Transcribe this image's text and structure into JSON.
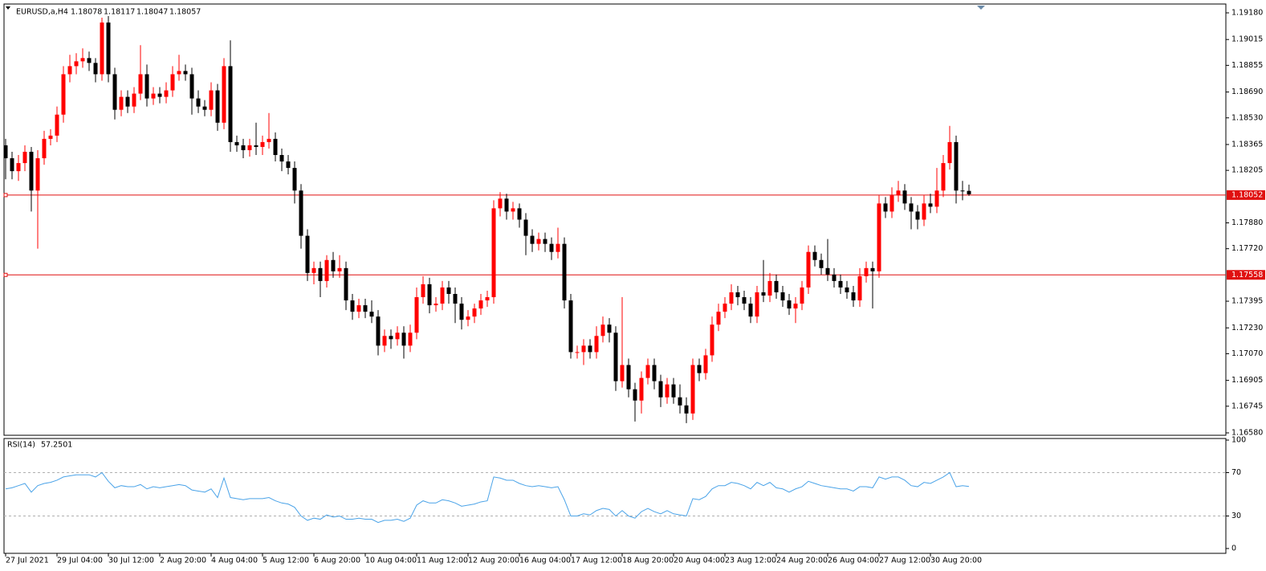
{
  "chart_data": [
    {
      "type": "candlestick",
      "title": "EURUSD,a,H4",
      "up_color": "#ff0000",
      "down_color": "#000000",
      "categories": [
        "27 Jul 2021",
        null,
        null,
        null,
        null,
        null,
        null,
        null,
        "29 Jul 04:00",
        null,
        null,
        null,
        null,
        null,
        null,
        null,
        "30 Jul 12:00",
        null,
        null,
        null,
        null,
        null,
        null,
        null,
        "2 Aug 20:00",
        null,
        null,
        null,
        null,
        null,
        null,
        null,
        "4 Aug 04:00",
        null,
        null,
        null,
        null,
        null,
        null,
        null,
        "5 Aug 12:00",
        null,
        null,
        null,
        null,
        null,
        null,
        null,
        "6 Aug 20:00",
        null,
        null,
        null,
        null,
        null,
        null,
        null,
        "10 Aug 04:00",
        null,
        null,
        null,
        null,
        null,
        null,
        null,
        "11 Aug 12:00",
        null,
        null,
        null,
        null,
        null,
        null,
        null,
        "12 Aug 20:00",
        null,
        null,
        null,
        null,
        null,
        null,
        null,
        "16 Aug 04:00",
        null,
        null,
        null,
        null,
        null,
        null,
        null,
        "17 Aug 12:00",
        null,
        null,
        null,
        null,
        null,
        null,
        null,
        "18 Aug 20:00",
        null,
        null,
        null,
        null,
        null,
        null,
        null,
        "20 Aug 04:00",
        null,
        null,
        null,
        null,
        null,
        null,
        null,
        "23 Aug 12:00",
        null,
        null,
        null,
        null,
        null,
        null,
        null,
        "24 Aug 20:00",
        null,
        null,
        null,
        null,
        null,
        null,
        null,
        "26 Aug 04:00",
        null,
        null,
        null,
        null,
        null,
        null,
        null,
        "27 Aug 12:00",
        null,
        null,
        null,
        null,
        null,
        null,
        null,
        "30 Aug 20:00",
        null,
        null,
        null,
        null,
        null,
        null
      ],
      "ohlc": [
        [
          1.1836,
          1.184,
          1.1815,
          1.1828
        ],
        [
          1.1828,
          1.1832,
          1.1815,
          1.182
        ],
        [
          1.182,
          1.183,
          1.1814,
          1.1825
        ],
        [
          1.1825,
          1.1836,
          1.182,
          1.1832
        ],
        [
          1.1832,
          1.1835,
          1.1795,
          1.1808
        ],
        [
          1.1808,
          1.1833,
          1.1772,
          1.1828
        ],
        [
          1.1828,
          1.1845,
          1.1824,
          1.184
        ],
        [
          1.184,
          1.1846,
          1.1836,
          1.1842
        ],
        [
          1.1842,
          1.186,
          1.1838,
          1.1855
        ],
        [
          1.1855,
          1.1885,
          1.185,
          1.188
        ],
        [
          1.188,
          1.1892,
          1.1875,
          1.1885
        ],
        [
          1.1885,
          1.1893,
          1.188,
          1.1888
        ],
        [
          1.1888,
          1.1896,
          1.1884,
          1.189
        ],
        [
          1.189,
          1.1894,
          1.1882,
          1.1887
        ],
        [
          1.1887,
          1.189,
          1.1875,
          1.188
        ],
        [
          1.188,
          1.1915,
          1.1876,
          1.1912
        ],
        [
          1.1912,
          1.1916,
          1.1875,
          1.188
        ],
        [
          1.188,
          1.1884,
          1.1852,
          1.1858
        ],
        [
          1.1858,
          1.187,
          1.1854,
          1.1866
        ],
        [
          1.1866,
          1.187,
          1.1856,
          1.186
        ],
        [
          1.186,
          1.1872,
          1.1856,
          1.1868
        ],
        [
          1.1868,
          1.1898,
          1.1864,
          1.188
        ],
        [
          1.188,
          1.1886,
          1.186,
          1.1865
        ],
        [
          1.1865,
          1.1872,
          1.1861,
          1.1868
        ],
        [
          1.1868,
          1.1872,
          1.1862,
          1.1866
        ],
        [
          1.1866,
          1.1875,
          1.1862,
          1.187
        ],
        [
          1.187,
          1.1885,
          1.1866,
          1.188
        ],
        [
          1.188,
          1.1892,
          1.1876,
          1.1882
        ],
        [
          1.1882,
          1.1886,
          1.1876,
          1.188
        ],
        [
          1.188,
          1.1884,
          1.1855,
          1.1865
        ],
        [
          1.1865,
          1.187,
          1.1856,
          1.186
        ],
        [
          1.186,
          1.1864,
          1.1854,
          1.1858
        ],
        [
          1.1858,
          1.1875,
          1.1854,
          1.187
        ],
        [
          1.187,
          1.1874,
          1.1845,
          1.185
        ],
        [
          1.185,
          1.189,
          1.1846,
          1.1885
        ],
        [
          1.1885,
          1.1901,
          1.1832,
          1.1838
        ],
        [
          1.1838,
          1.1842,
          1.1832,
          1.1836
        ],
        [
          1.1836,
          1.184,
          1.1828,
          1.1833
        ],
        [
          1.1833,
          1.184,
          1.1829,
          1.1836
        ],
        [
          1.1836,
          1.185,
          1.183,
          1.1835
        ],
        [
          1.1835,
          1.1842,
          1.183,
          1.1838
        ],
        [
          1.1838,
          1.1856,
          1.1834,
          1.184
        ],
        [
          1.184,
          1.1844,
          1.1826,
          1.183
        ],
        [
          1.183,
          1.1834,
          1.182,
          1.1826
        ],
        [
          1.1826,
          1.183,
          1.1818,
          1.1822
        ],
        [
          1.1822,
          1.1826,
          1.18,
          1.1808
        ],
        [
          1.1808,
          1.1812,
          1.1772,
          1.178
        ],
        [
          1.178,
          1.1784,
          1.1752,
          1.1757
        ],
        [
          1.1757,
          1.1764,
          1.175,
          1.176
        ],
        [
          1.176,
          1.1764,
          1.1742,
          1.1752
        ],
        [
          1.1752,
          1.1768,
          1.1748,
          1.1765
        ],
        [
          1.1765,
          1.177,
          1.1754,
          1.1758
        ],
        [
          1.1758,
          1.1768,
          1.1754,
          1.176
        ],
        [
          1.176,
          1.1764,
          1.1734,
          1.174
        ],
        [
          1.174,
          1.1744,
          1.1728,
          1.1733
        ],
        [
          1.1733,
          1.1741,
          1.1729,
          1.1737
        ],
        [
          1.1737,
          1.1741,
          1.1729,
          1.1733
        ],
        [
          1.1733,
          1.174,
          1.1726,
          1.173
        ],
        [
          1.173,
          1.1734,
          1.1706,
          1.1712
        ],
        [
          1.1712,
          1.1722,
          1.1708,
          1.1718
        ],
        [
          1.1718,
          1.1722,
          1.171,
          1.1716
        ],
        [
          1.1716,
          1.1724,
          1.1712,
          1.172
        ],
        [
          1.172,
          1.1724,
          1.1704,
          1.1712
        ],
        [
          1.1712,
          1.1725,
          1.1708,
          1.172
        ],
        [
          1.172,
          1.1748,
          1.1716,
          1.1742
        ],
        [
          1.1742,
          1.1755,
          1.1738,
          1.175
        ],
        [
          1.175,
          1.1754,
          1.1732,
          1.1737
        ],
        [
          1.1737,
          1.1742,
          1.1733,
          1.1738
        ],
        [
          1.1738,
          1.1752,
          1.1734,
          1.1748
        ],
        [
          1.1748,
          1.1752,
          1.1738,
          1.1744
        ],
        [
          1.1744,
          1.1748,
          1.1726,
          1.1738
        ],
        [
          1.1738,
          1.1742,
          1.1722,
          1.1728
        ],
        [
          1.1728,
          1.1734,
          1.1724,
          1.173
        ],
        [
          1.173,
          1.1738,
          1.1726,
          1.1735
        ],
        [
          1.1735,
          1.1744,
          1.1731,
          1.174
        ],
        [
          1.174,
          1.1746,
          1.1736,
          1.1742
        ],
        [
          1.1742,
          1.1802,
          1.1738,
          1.1797
        ],
        [
          1.1797,
          1.1807,
          1.1792,
          1.1803
        ],
        [
          1.1803,
          1.1806,
          1.179,
          1.1795
        ],
        [
          1.1795,
          1.1801,
          1.179,
          1.1797
        ],
        [
          1.1797,
          1.18,
          1.1785,
          1.179
        ],
        [
          1.179,
          1.1794,
          1.1768,
          1.178
        ],
        [
          1.178,
          1.1784,
          1.177,
          1.1775
        ],
        [
          1.1775,
          1.1782,
          1.1771,
          1.1778
        ],
        [
          1.1778,
          1.1782,
          1.177,
          1.1775
        ],
        [
          1.1775,
          1.1779,
          1.1765,
          1.177
        ],
        [
          1.177,
          1.1785,
          1.1766,
          1.1775
        ],
        [
          1.1775,
          1.1779,
          1.1735,
          1.174
        ],
        [
          1.174,
          1.1744,
          1.1704,
          1.1708
        ],
        [
          1.1708,
          1.1712,
          1.1704,
          1.1708
        ],
        [
          1.1708,
          1.1716,
          1.17,
          1.1712
        ],
        [
          1.1712,
          1.1716,
          1.1704,
          1.1708
        ],
        [
          1.1708,
          1.1724,
          1.1704,
          1.1718
        ],
        [
          1.1718,
          1.173,
          1.1714,
          1.1725
        ],
        [
          1.1725,
          1.1729,
          1.1714,
          1.172
        ],
        [
          1.172,
          1.1724,
          1.1684,
          1.169
        ],
        [
          1.169,
          1.1742,
          1.1686,
          1.17
        ],
        [
          1.17,
          1.1704,
          1.168,
          1.1685
        ],
        [
          1.1685,
          1.1689,
          1.1665,
          1.1678
        ],
        [
          1.1678,
          1.1696,
          1.167,
          1.1692
        ],
        [
          1.1692,
          1.1704,
          1.1688,
          1.17
        ],
        [
          1.17,
          1.1704,
          1.1685,
          1.169
        ],
        [
          1.169,
          1.1694,
          1.1674,
          1.168
        ],
        [
          1.168,
          1.1692,
          1.1676,
          1.1688
        ],
        [
          1.1688,
          1.1692,
          1.1676,
          1.168
        ],
        [
          1.168,
          1.1688,
          1.167,
          1.1675
        ],
        [
          1.1675,
          1.168,
          1.1664,
          1.167
        ],
        [
          1.167,
          1.1704,
          1.1666,
          1.17
        ],
        [
          1.17,
          1.1704,
          1.169,
          1.1695
        ],
        [
          1.1695,
          1.171,
          1.1691,
          1.1706
        ],
        [
          1.1706,
          1.173,
          1.1702,
          1.1725
        ],
        [
          1.1725,
          1.1738,
          1.1721,
          1.1733
        ],
        [
          1.1733,
          1.1742,
          1.1729,
          1.1738
        ],
        [
          1.1738,
          1.175,
          1.1734,
          1.1745
        ],
        [
          1.1745,
          1.1749,
          1.1737,
          1.1742
        ],
        [
          1.1742,
          1.1746,
          1.1734,
          1.1738
        ],
        [
          1.1738,
          1.1742,
          1.1726,
          1.173
        ],
        [
          1.173,
          1.1749,
          1.1726,
          1.1745
        ],
        [
          1.1745,
          1.1765,
          1.1739,
          1.1743
        ],
        [
          1.1743,
          1.1757,
          1.1739,
          1.1752
        ],
        [
          1.1752,
          1.1756,
          1.1741,
          1.1745
        ],
        [
          1.1745,
          1.1749,
          1.1736,
          1.174
        ],
        [
          1.174,
          1.1744,
          1.1731,
          1.1735
        ],
        [
          1.1735,
          1.1742,
          1.1726,
          1.1738
        ],
        [
          1.1738,
          1.1752,
          1.1734,
          1.1748
        ],
        [
          1.1748,
          1.1774,
          1.1744,
          1.177
        ],
        [
          1.177,
          1.1774,
          1.1761,
          1.1765
        ],
        [
          1.1765,
          1.1769,
          1.1756,
          1.176
        ],
        [
          1.176,
          1.1778,
          1.1752,
          1.1756
        ],
        [
          1.1756,
          1.176,
          1.1748,
          1.1752
        ],
        [
          1.1752,
          1.1756,
          1.1744,
          1.1748
        ],
        [
          1.1748,
          1.1752,
          1.1741,
          1.1745
        ],
        [
          1.1745,
          1.1749,
          1.1736,
          1.174
        ],
        [
          1.174,
          1.176,
          1.1736,
          1.1755
        ],
        [
          1.1755,
          1.1764,
          1.1751,
          1.176
        ],
        [
          1.176,
          1.1764,
          1.1735,
          1.1758
        ],
        [
          1.1758,
          1.1805,
          1.1754,
          1.18
        ],
        [
          1.18,
          1.1804,
          1.1791,
          1.1795
        ],
        [
          1.1795,
          1.181,
          1.1791,
          1.1805
        ],
        [
          1.1805,
          1.1814,
          1.1801,
          1.1808
        ],
        [
          1.1808,
          1.1812,
          1.1796,
          1.18
        ],
        [
          1.18,
          1.1804,
          1.1784,
          1.1795
        ],
        [
          1.1795,
          1.1799,
          1.1784,
          1.179
        ],
        [
          1.179,
          1.1805,
          1.1786,
          1.18
        ],
        [
          1.18,
          1.1806,
          1.1794,
          1.1798
        ],
        [
          1.1798,
          1.1822,
          1.1794,
          1.1808
        ],
        [
          1.1808,
          1.183,
          1.1804,
          1.1825
        ],
        [
          1.1825,
          1.1848,
          1.1821,
          1.1838
        ],
        [
          1.1838,
          1.1842,
          1.18,
          1.1808
        ],
        [
          1.1808,
          1.1814,
          1.1802,
          1.18078
        ],
        [
          1.18078,
          1.18117,
          1.18047,
          1.18057
        ]
      ],
      "ylim": [
        1.1658,
        1.1918
      ],
      "yticks": [
        {
          "value": 1.1918,
          "label": "1.19180"
        },
        1.19015,
        1.18855,
        {
          "value": 1.1869,
          "label": "1.18690"
        },
        {
          "value": 1.1853,
          "label": "1.18530"
        },
        1.18365,
        1.18205,
        {
          "value": 1.1788,
          "label": "1.17880"
        },
        {
          "value": 1.1772,
          "label": "1.17720"
        },
        1.17395,
        {
          "value": 1.1723,
          "label": "1.17230"
        },
        {
          "value": 1.1707,
          "label": "1.17070"
        },
        1.16905,
        1.16745,
        {
          "value": 1.1658,
          "label": "1.16580"
        }
      ],
      "hlines": [
        {
          "value": 1.18052,
          "color": "#e01010"
        },
        {
          "value": 1.17558,
          "color": "#e01010"
        }
      ]
    },
    {
      "type": "line",
      "title": "RSI(14)",
      "color": "#4aa3e8",
      "values": [
        55,
        56,
        58,
        60,
        52,
        58,
        60,
        61,
        63,
        66,
        67,
        68,
        68,
        68,
        66,
        70,
        62,
        56,
        58,
        57,
        57,
        59,
        55,
        57,
        56,
        57,
        58,
        59,
        58,
        54,
        53,
        52,
        55,
        47,
        65,
        47,
        46,
        45,
        46,
        46,
        46,
        47,
        44,
        42,
        41,
        38,
        30,
        26,
        28,
        27,
        31,
        29,
        30,
        27,
        27,
        28,
        27,
        27,
        24,
        26,
        26,
        27,
        25,
        28,
        40,
        44,
        42,
        42,
        45,
        44,
        42,
        39,
        40,
        41,
        43,
        44,
        66,
        65,
        63,
        63,
        60,
        58,
        57,
        58,
        57,
        56,
        57,
        45,
        30,
        30,
        32,
        31,
        35,
        37,
        36,
        30,
        35,
        30,
        28,
        34,
        37,
        34,
        32,
        35,
        32,
        31,
        30,
        46,
        45,
        48,
        55,
        58,
        58,
        61,
        60,
        58,
        55,
        61,
        58,
        61,
        56,
        55,
        52,
        55,
        57,
        62,
        60,
        58,
        57,
        56,
        55,
        55,
        53,
        57,
        57,
        56,
        66,
        64,
        66,
        66,
        63,
        58,
        57,
        61,
        60,
        63,
        66,
        70,
        57,
        58,
        57.2501
      ],
      "ylim": [
        0,
        100
      ],
      "yticks": [
        0,
        30,
        70,
        100
      ],
      "levels": [
        70,
        30
      ]
    }
  ]
}
